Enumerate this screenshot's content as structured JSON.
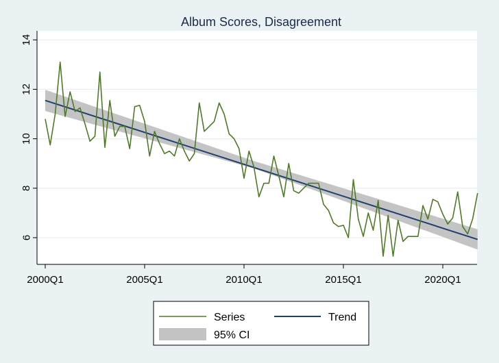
{
  "chart_data": {
    "type": "line",
    "title": "Album Scores, Disagreement",
    "xlabel": "",
    "ylabel": "",
    "x_tick_labels": [
      "2000Q1",
      "2005Q1",
      "2010Q1",
      "2015Q1",
      "2020Q1"
    ],
    "y_ticks": [
      6,
      8,
      10,
      12,
      14
    ],
    "ylim": [
      5.0,
      14.3
    ],
    "grid": true,
    "legend_position": "bottom",
    "colors": {
      "series": "#4e7a27",
      "trend": "#1f3f6e",
      "ci": "#c4c4c4",
      "plot_bg": "#ffffff",
      "outer_bg": "#eaf2f3",
      "grid": "#e8ecee"
    },
    "series": [
      {
        "name": "Series",
        "x": [
          "2000Q1",
          "2000Q2",
          "2000Q3",
          "2000Q4",
          "2001Q1",
          "2001Q2",
          "2001Q3",
          "2001Q4",
          "2002Q1",
          "2002Q2",
          "2002Q3",
          "2002Q4",
          "2003Q1",
          "2003Q2",
          "2003Q3",
          "2003Q4",
          "2004Q1",
          "2004Q2",
          "2004Q3",
          "2004Q4",
          "2005Q1",
          "2005Q2",
          "2005Q3",
          "2005Q4",
          "2006Q1",
          "2006Q2",
          "2006Q3",
          "2006Q4",
          "2007Q1",
          "2007Q2",
          "2007Q3",
          "2007Q4",
          "2008Q1",
          "2008Q2",
          "2008Q3",
          "2008Q4",
          "2009Q1",
          "2009Q2",
          "2009Q3",
          "2009Q4",
          "2010Q1",
          "2010Q2",
          "2010Q3",
          "2010Q4",
          "2011Q1",
          "2011Q2",
          "2011Q3",
          "2011Q4",
          "2012Q1",
          "2012Q2",
          "2012Q3",
          "2012Q4",
          "2013Q1",
          "2013Q2",
          "2013Q3",
          "2013Q4",
          "2014Q1",
          "2014Q2",
          "2014Q3",
          "2014Q4",
          "2015Q1",
          "2015Q2",
          "2015Q3",
          "2015Q4",
          "2016Q1",
          "2016Q2",
          "2016Q3",
          "2016Q4",
          "2017Q1",
          "2017Q2",
          "2017Q3",
          "2017Q4",
          "2018Q1",
          "2018Q2",
          "2018Q3",
          "2018Q4",
          "2019Q1",
          "2019Q2",
          "2019Q3",
          "2019Q4",
          "2020Q1",
          "2020Q2",
          "2020Q3",
          "2020Q4",
          "2021Q1",
          "2021Q2",
          "2021Q3",
          "2021Q4"
        ],
        "values": [
          10.8,
          9.75,
          11.0,
          13.1,
          10.9,
          11.9,
          11.1,
          11.25,
          10.6,
          9.9,
          10.1,
          12.7,
          9.65,
          11.55,
          10.1,
          10.5,
          10.5,
          9.6,
          11.3,
          11.35,
          10.7,
          9.3,
          10.3,
          9.8,
          9.4,
          9.5,
          9.3,
          10.0,
          9.5,
          9.1,
          9.4,
          11.45,
          10.3,
          10.5,
          10.7,
          11.45,
          11.0,
          10.2,
          10.0,
          9.6,
          8.4,
          9.5,
          8.85,
          7.65,
          8.2,
          8.2,
          9.3,
          8.5,
          7.65,
          9.0,
          7.9,
          7.8,
          8.0,
          8.2,
          8.2,
          8.2,
          7.35,
          7.1,
          6.6,
          6.45,
          6.5,
          6.0,
          8.35,
          6.75,
          6.05,
          7.0,
          6.3,
          7.5,
          5.25,
          6.9,
          5.25,
          6.7,
          5.85,
          6.05,
          6.05,
          6.05,
          7.3,
          6.75,
          7.55,
          7.45,
          6.95,
          6.55,
          6.8,
          7.85,
          6.45,
          6.15,
          6.75,
          7.8
        ]
      },
      {
        "name": "Trend",
        "x": [
          "2000Q1",
          "2021Q4"
        ],
        "values": [
          11.55,
          5.93
        ]
      }
    ],
    "ci": {
      "name": "95% CI",
      "x": [
        "2000Q1",
        "2010Q3",
        "2021Q4"
      ],
      "lower": [
        11.12,
        8.8,
        5.52
      ],
      "upper": [
        11.98,
        9.1,
        6.34
      ]
    }
  },
  "legend": {
    "series_label": "Series",
    "trend_label": "Trend",
    "ci_label": "95% CI"
  }
}
